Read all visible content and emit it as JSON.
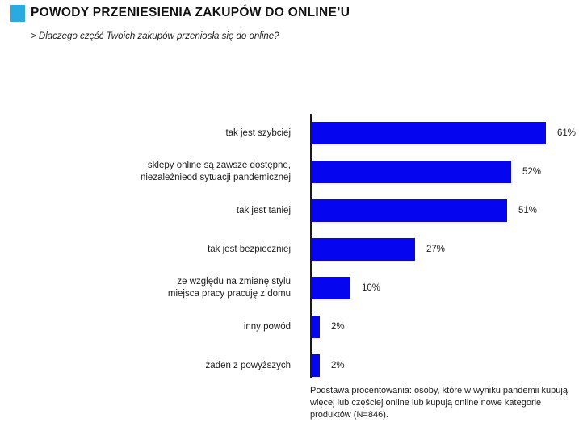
{
  "header": {
    "title": "POWODY PRZENIESIENIA ZAKUPÓW DO ONLINE’U",
    "subtitle": "> Dlaczego część Twoich zakupów przeniosła się do online?",
    "accent_color": "#29ABE2"
  },
  "chart_data": {
    "type": "bar",
    "orientation": "horizontal",
    "categories": [
      "tak jest szybciej",
      "sklepy online są zawsze dostępne,\nniezależnieod sytuacji pandemicznej",
      "tak jest taniej",
      "tak jest bezpieczniej",
      "ze względu na zmianę stylu\nmiejsca pracy pracuję z domu",
      "inny powód",
      "żaden z powyższych"
    ],
    "values": [
      61,
      52,
      51,
      27,
      10,
      2,
      2
    ],
    "value_labels": [
      "61%",
      "52%",
      "51%",
      "27%",
      "10%",
      "2%",
      "2%"
    ],
    "unit": "%",
    "bar_color": "#0505F0",
    "xlim": [
      0,
      61
    ],
    "grid": false,
    "legend": false,
    "title": "POWODY PRZENIESIENIA ZAKUPÓW DO ONLINE’U",
    "xlabel": "",
    "ylabel": ""
  },
  "footnote": "Podstawa procentowania: osoby, które w wyniku pandemii kupują więcej lub częściej online lub kupują online nowe kategorie produktów (N=846)."
}
